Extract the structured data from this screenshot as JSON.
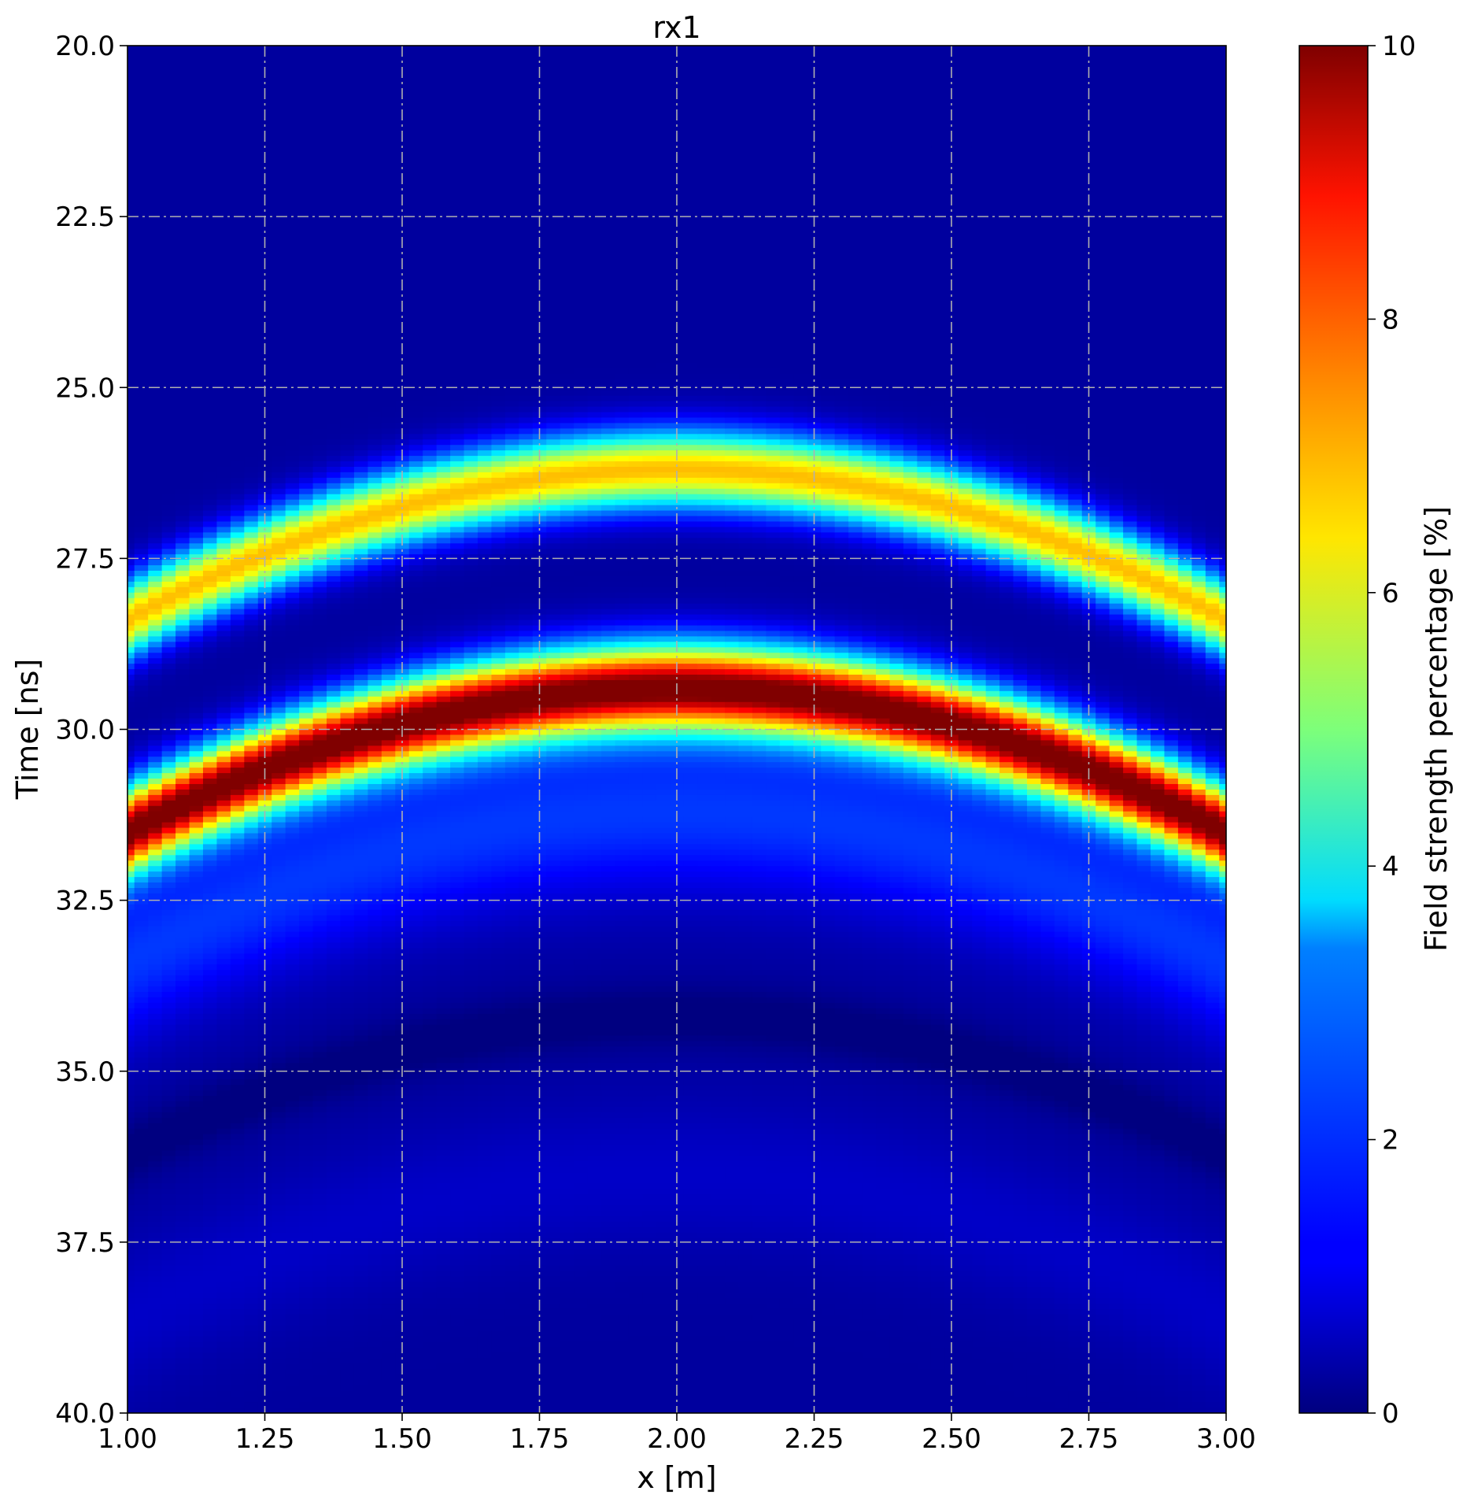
{
  "chart_data": {
    "type": "heatmap",
    "title": "rx1",
    "xlabel": "x [m]",
    "ylabel": "Time [ns]",
    "xlim": [
      1.0,
      3.0
    ],
    "ylim": [
      40.0,
      20.0
    ],
    "y_inverted": true,
    "grid": true,
    "colormap": "jet",
    "colorbar": {
      "label": "Field strength percentage [%]",
      "range": [
        0,
        10
      ],
      "ticks": [
        "0",
        "2",
        "4",
        "6",
        "8",
        "10"
      ]
    },
    "xticks": [
      "1.00",
      "1.25",
      "1.50",
      "1.75",
      "2.00",
      "2.25",
      "2.50",
      "2.75",
      "3.00"
    ],
    "yticks": [
      "20.0",
      "22.5",
      "25.0",
      "27.5",
      "30.0",
      "32.5",
      "35.0",
      "37.5",
      "40.0"
    ],
    "x_columns": 81,
    "apex_x": 2.0,
    "bands": [
      {
        "apex_time": 26.2,
        "edge_time": 28.4,
        "peak_value": 6.6,
        "half_width": 0.75
      },
      {
        "apex_time": 29.4,
        "edge_time": 31.5,
        "peak_value": 10.0,
        "half_width": 0.85
      },
      {
        "apex_time": 31.2,
        "edge_time": 33.4,
        "peak_value": 1.5,
        "half_width": 1.6
      },
      {
        "apex_time": 34.2,
        "edge_time": 36.2,
        "peak_value": -0.4,
        "half_width": 0.6
      },
      {
        "apex_time": 36.5,
        "edge_time": 38.6,
        "peak_value": 0.4,
        "half_width": 1.5
      }
    ],
    "background_value": 0.3
  }
}
